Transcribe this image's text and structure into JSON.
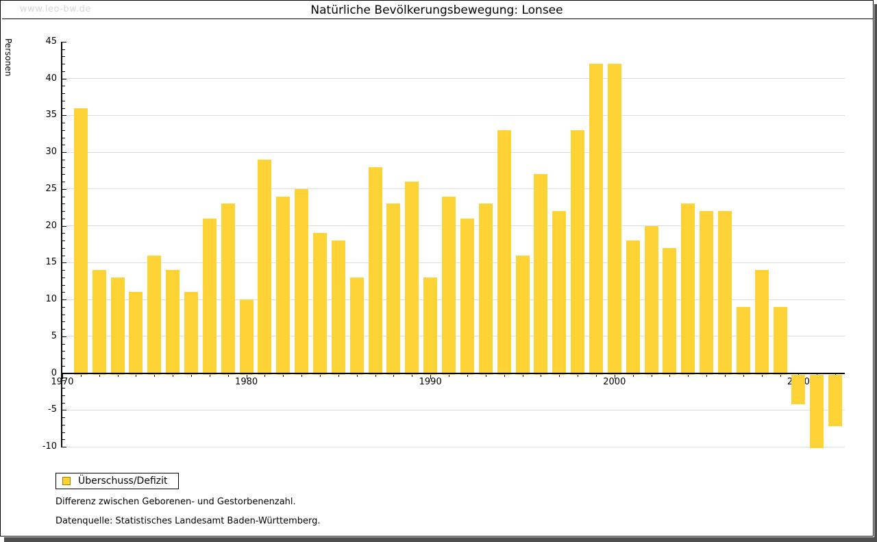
{
  "page": {
    "watermark": "www.leo-bw.de"
  },
  "chart_data": {
    "type": "bar",
    "title": "Natürliche Bevölkerungsbewegung: Lonsee",
    "ylabel": "Personen",
    "xlabel": "",
    "legend": "Überschuss/Defizit",
    "categories": [
      1971,
      1972,
      1973,
      1974,
      1975,
      1976,
      1977,
      1978,
      1979,
      1980,
      1981,
      1982,
      1983,
      1984,
      1985,
      1986,
      1987,
      1988,
      1989,
      1990,
      1991,
      1992,
      1993,
      1994,
      1995,
      1996,
      1997,
      1998,
      1999,
      2000,
      2001,
      2002,
      2003,
      2004,
      2005,
      2006,
      2007,
      2008,
      2009,
      2010,
      2011,
      2012
    ],
    "values": [
      36,
      14,
      13,
      11,
      16,
      14,
      11,
      21,
      23,
      10,
      29,
      24,
      25,
      19,
      18,
      13,
      28,
      23,
      26,
      13,
      24,
      21,
      23,
      33,
      16,
      27,
      22,
      33,
      42,
      42,
      18,
      20,
      17,
      23,
      22,
      22,
      9,
      14,
      9,
      -4,
      -10,
      -7
    ],
    "ylim": [
      -10,
      45
    ],
    "xlim": [
      1970,
      2012.5
    ],
    "y_major_ticks": [
      45,
      40,
      35,
      30,
      25,
      20,
      15,
      10,
      5,
      0,
      -5,
      -10
    ],
    "x_major_ticks": [
      1970,
      1980,
      1990,
      2000,
      2010
    ],
    "y_minor_tick_step": 1,
    "x_minor_tick_step": 1,
    "grid": true,
    "legend_position": "bottom-left",
    "bar_color": "#fdd335",
    "grid_color": "#dddddd",
    "axis_color": "#000000"
  },
  "footer": {
    "line1": "Differenz zwischen Geborenen- und Gestorbenenzahl.",
    "line2": "Datenquelle: Statistisches Landesamt Baden-Württemberg."
  }
}
